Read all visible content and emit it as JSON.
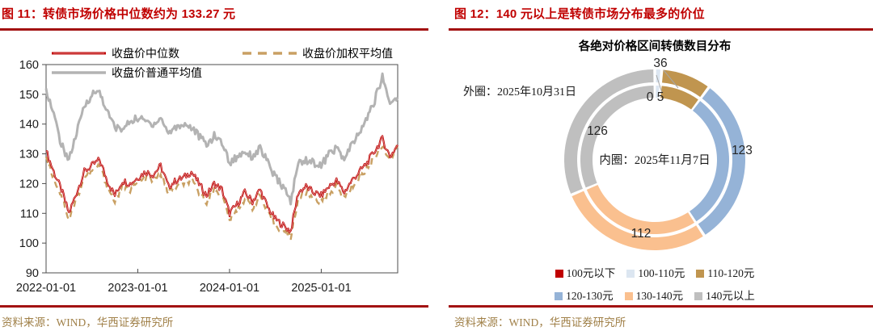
{
  "panels": [
    {
      "title": "图 11：转债市场价格中位数约为 133.27 元",
      "source": "资料来源：WIND，华西证券研究所"
    },
    {
      "title": "图 12：140 元以上是转债市场分布最多的价位",
      "source": "资料来源：WIND，华西证券研究所"
    }
  ],
  "colors": {
    "title_red": "#c00000",
    "rule_red": "#a31212",
    "source_tan": "#a08048",
    "axis_text": "#1a1a1a",
    "frame": "#4d4d4d"
  },
  "chart_data": [
    {
      "type": "line",
      "x_tick_labels": [
        "2022-01-01",
        "2023-01-01",
        "2024-01-01",
        "2025-01-01"
      ],
      "x_tick_months": [
        0,
        12,
        24,
        36
      ],
      "months_total": 46,
      "x_range_note": "monthly values 2022-01 through 2025-11",
      "ylim": [
        90,
        160
      ],
      "y_ticks": [
        90,
        100,
        110,
        120,
        130,
        140,
        150,
        160
      ],
      "grid": false,
      "legend_position": "top",
      "series": [
        {
          "name": "收盘价中位数",
          "color": "#c00000",
          "style": "solid",
          "width": 2.2,
          "values": [
            131,
            124,
            118,
            110,
            117,
            124,
            126,
            128,
            121,
            116,
            121,
            120,
            122,
            124,
            123,
            126,
            119,
            121,
            122,
            124,
            120,
            116,
            120,
            118,
            110,
            113,
            117,
            114,
            118,
            112,
            108,
            106,
            104,
            117,
            119,
            117,
            116,
            119,
            121,
            117,
            121,
            124,
            127,
            131,
            135,
            129,
            133
          ]
        },
        {
          "name": "收盘价加权平均值",
          "color": "#c9a063",
          "style": "dashed",
          "width": 2.4,
          "values": [
            129,
            122,
            116,
            108,
            115,
            122,
            124,
            126,
            119,
            114,
            119,
            118,
            120,
            122,
            121,
            123,
            117,
            119,
            120,
            121,
            117,
            114,
            118,
            116,
            108,
            111,
            115,
            112,
            116,
            110,
            106,
            104,
            102,
            115,
            117,
            115,
            114,
            117,
            119,
            115,
            119,
            122,
            125,
            129,
            133,
            128,
            132
          ]
        },
        {
          "name": "收盘价普通平均值",
          "color": "#b3b3b3",
          "style": "solid",
          "width": 3,
          "values": [
            152,
            143,
            133,
            128,
            137,
            146,
            150,
            151,
            144,
            139,
            138,
            141,
            142,
            141,
            140,
            142,
            137,
            139,
            140,
            139,
            136,
            133,
            136,
            134,
            127,
            129,
            131,
            129,
            132,
            127,
            122,
            119,
            114,
            127,
            128,
            127,
            126,
            130,
            132,
            128,
            133,
            137,
            142,
            148,
            156,
            147,
            149
          ]
        }
      ]
    },
    {
      "type": "donut",
      "title": "各绝对价格区间转债数目分布",
      "outer_ring_label": "外圈：2025年10月31日",
      "inner_ring_label": "内圈：2025年11月7日",
      "total": 402,
      "categories": [
        {
          "name": "100元以下",
          "color": "#c00000",
          "value": 0
        },
        {
          "name": "100-110元",
          "color": "#dce6f1",
          "value": 5
        },
        {
          "name": "110-120元",
          "color": "#c0954f",
          "value": 36
        },
        {
          "name": "120-130元",
          "color": "#95b3d7",
          "value": 123
        },
        {
          "name": "130-140元",
          "color": "#fac08f",
          "value": 112
        },
        {
          "name": "140元以上",
          "color": "#bfbfbf",
          "value": 126
        }
      ]
    }
  ]
}
